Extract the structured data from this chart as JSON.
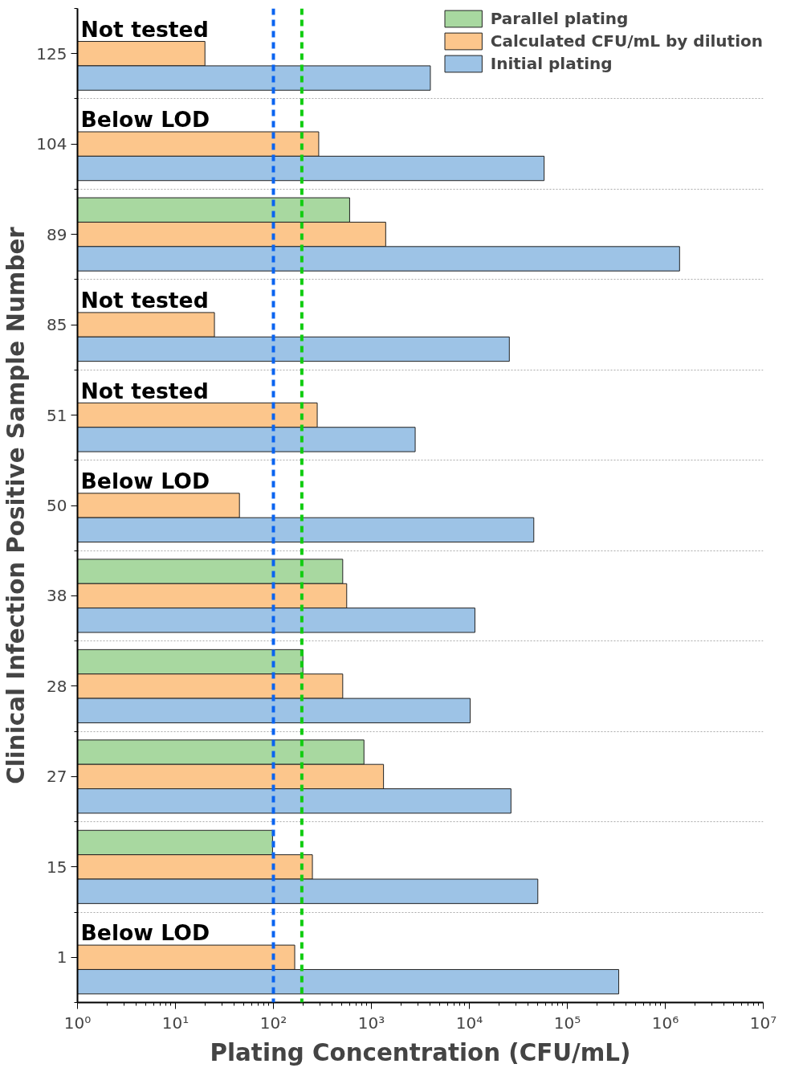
{
  "chart_data": {
    "type": "bar",
    "orientation": "horizontal",
    "log": "x",
    "xlabel": "Plating Concentration (CFU/mL)",
    "ylabel": "Clinical Infection Positive Sample Number",
    "categories": [
      "125",
      "104",
      "89",
      "85",
      "51",
      "50",
      "38",
      "28",
      "27",
      "15",
      "1"
    ],
    "series": [
      {
        "name": "Parallel plating",
        "color": "#a8d8a0",
        "values": [
          null,
          null,
          600,
          null,
          null,
          null,
          510,
          200,
          840,
          98,
          null
        ]
      },
      {
        "name": "Calculated CFU/mL by dilution",
        "color": "#fcc68c",
        "values": [
          20,
          290,
          1400,
          25,
          280,
          45,
          560,
          510,
          1330,
          250,
          165
        ]
      },
      {
        "name": "Initial plating",
        "color": "#9dc3e6",
        "values": [
          4000,
          58000,
          1400000,
          25600,
          2800,
          45500,
          11400,
          10200,
          26600,
          50000,
          335000
        ]
      }
    ],
    "xlim": [
      1,
      10000000
    ],
    "xticks": [
      {
        "value": 1,
        "label": "10⁰"
      },
      {
        "value": 10,
        "label": "10¹"
      },
      {
        "value": 100,
        "label": "10²"
      },
      {
        "value": 1000,
        "label": "10³"
      },
      {
        "value": 10000,
        "label": "10⁴"
      },
      {
        "value": 100000,
        "label": "10⁵"
      },
      {
        "value": 1000000,
        "label": "10⁶"
      },
      {
        "value": 10000000,
        "label": "10⁷"
      }
    ],
    "ref_lines": [
      {
        "axis": "x",
        "value": 100,
        "color": "#0a64f0",
        "line_style": "dashed"
      },
      {
        "axis": "x",
        "value": 195,
        "color": "#11cc11",
        "line_style": "dashed"
      }
    ],
    "annotations": [
      "Not tested",
      "Below LOD",
      "Not tested",
      "Not tested",
      "Below LOD",
      "Below LOD"
    ],
    "grid": "y",
    "legend": "top right"
  }
}
